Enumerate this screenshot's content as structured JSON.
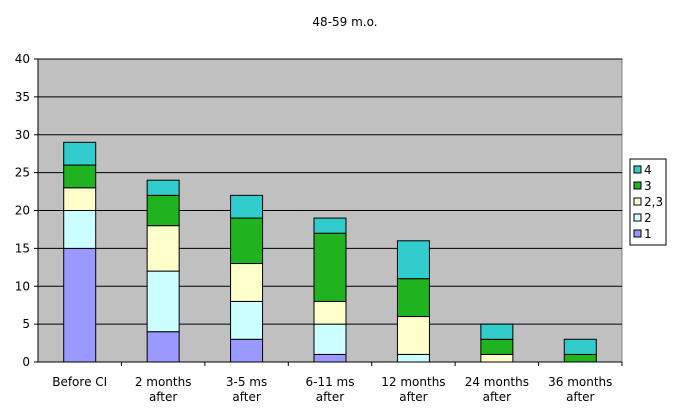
{
  "chart_data": {
    "type": "bar",
    "stacked": true,
    "title": "48-59 m.o.",
    "xlabel": "",
    "ylabel": "",
    "ylim": [
      0,
      40
    ],
    "yticks": [
      0,
      5,
      10,
      15,
      20,
      25,
      30,
      35,
      40
    ],
    "grid": true,
    "legend_position": "right",
    "categories": [
      [
        "Before CI"
      ],
      [
        "2 months",
        "after"
      ],
      [
        "3-5 ms",
        "after"
      ],
      [
        "6-11 ms",
        "after"
      ],
      [
        "12 months",
        "after"
      ],
      [
        "24 months",
        "after"
      ],
      [
        "36 months",
        "after"
      ]
    ],
    "series": [
      {
        "name": "1",
        "color": "#9999ff",
        "values": [
          15,
          4,
          3,
          1,
          0,
          0,
          0
        ]
      },
      {
        "name": "2",
        "color": "#ccffff",
        "values": [
          5,
          8,
          5,
          4,
          1,
          0,
          0
        ]
      },
      {
        "name": "2,3",
        "color": "#ffffcc",
        "values": [
          3,
          6,
          5,
          3,
          5,
          1,
          0
        ]
      },
      {
        "name": "3",
        "color": "#1fb31f",
        "values": [
          3,
          4,
          6,
          9,
          5,
          2,
          1
        ]
      },
      {
        "name": "4",
        "color": "#33cccc",
        "values": [
          3,
          2,
          3,
          2,
          5,
          2,
          2
        ]
      }
    ],
    "plot_background": "#c0c0c0"
  }
}
